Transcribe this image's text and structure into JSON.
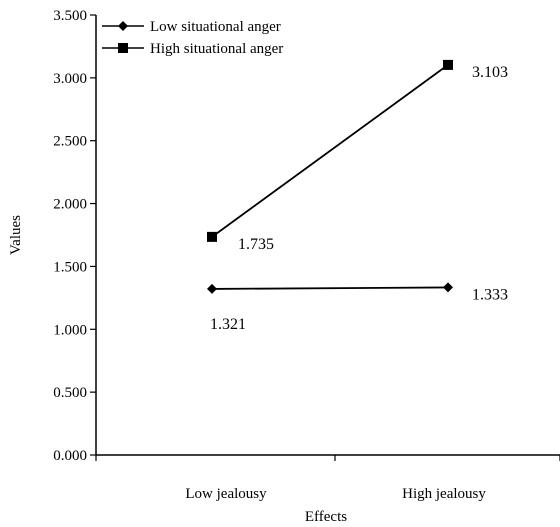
{
  "chart_data": {
    "type": "line",
    "categories": [
      "Low jealousy",
      "High jealousy"
    ],
    "series": [
      {
        "name": "Low situational anger",
        "marker": "diamond",
        "values": [
          1.321,
          1.333
        ],
        "labels": [
          "1.321",
          "1.333"
        ]
      },
      {
        "name": "High situational anger",
        "marker": "square",
        "values": [
          1.735,
          3.103
        ],
        "labels": [
          "1.735",
          "3.103"
        ]
      }
    ],
    "xlabel": "Effects",
    "ylabel": "Values",
    "ylim": [
      0,
      3.5
    ],
    "yticks": [
      0,
      0.5,
      1.0,
      1.5,
      2.0,
      2.5,
      3.0,
      3.5
    ],
    "ytick_labels": [
      "0.000",
      "0.500",
      "1.000",
      "1.500",
      "2.000",
      "2.500",
      "3.000",
      "3.500"
    ],
    "grid": false,
    "legend_position": "top-left",
    "colors": {
      "line": "#000000",
      "background": "#ffffff"
    }
  }
}
